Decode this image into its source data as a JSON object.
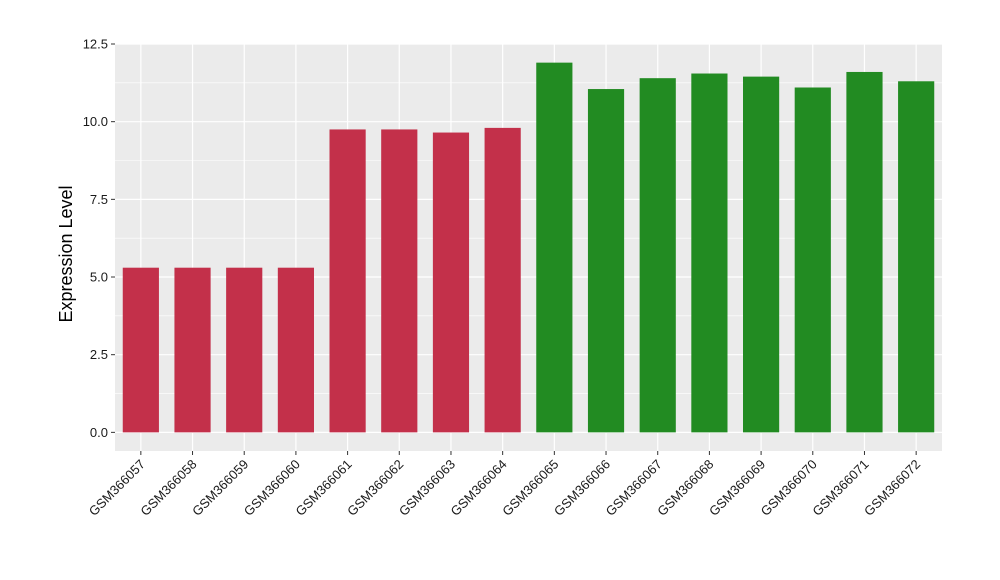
{
  "chart_data": {
    "type": "bar",
    "title": "",
    "xlabel": "",
    "ylabel": "Expression Level",
    "ylim": [
      -0.6,
      12.5
    ],
    "yticks": [
      0.0,
      2.5,
      5.0,
      7.5,
      10.0,
      12.5
    ],
    "ytick_labels": [
      "0.0",
      "2.5",
      "5.0",
      "7.5",
      "10.0",
      "12.5"
    ],
    "grid": true,
    "legend": "none",
    "categories": [
      "GSM366057",
      "GSM366058",
      "GSM366059",
      "GSM366060",
      "GSM366061",
      "GSM366062",
      "GSM366063",
      "GSM366064",
      "GSM366065",
      "GSM366066",
      "GSM366067",
      "GSM366068",
      "GSM366069",
      "GSM366070",
      "GSM366071",
      "GSM366072"
    ],
    "values": [
      5.3,
      5.3,
      5.3,
      5.3,
      9.75,
      9.75,
      9.65,
      9.8,
      11.9,
      11.05,
      11.4,
      11.55,
      11.45,
      11.1,
      11.6,
      11.3
    ],
    "bar_colors": [
      "#c3304a",
      "#c3304a",
      "#c3304a",
      "#c3304a",
      "#c3304a",
      "#c3304a",
      "#c3304a",
      "#c3304a",
      "#228b22",
      "#228b22",
      "#228b22",
      "#228b22",
      "#228b22",
      "#228b22",
      "#228b22",
      "#228b22"
    ],
    "panel_color": "#ebebeb",
    "grid_color": "#ffffff"
  }
}
